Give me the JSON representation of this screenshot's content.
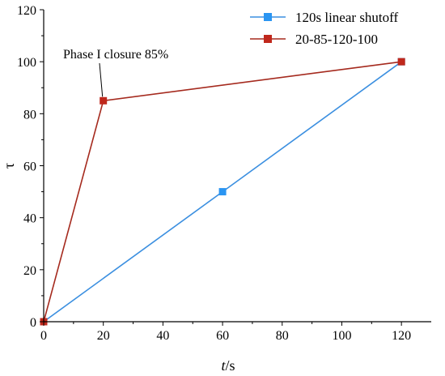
{
  "chart_data": {
    "type": "line",
    "xlabel": {
      "var": "t",
      "unit": "/s"
    },
    "ylabel": "τ",
    "xlim": [
      0,
      130
    ],
    "ylim": [
      0,
      120
    ],
    "xticks": [
      0,
      20,
      40,
      60,
      80,
      100,
      120
    ],
    "yticks": [
      0,
      20,
      40,
      60,
      80,
      100,
      120
    ],
    "grid": false,
    "legend_position": "top-right",
    "series": [
      {
        "name": "120s linear shutoff",
        "color": "#3b8fe0",
        "marker_color": "#2a95f2",
        "x": [
          0,
          60,
          120
        ],
        "y": [
          0,
          50,
          100
        ]
      },
      {
        "name": "20-85-120-100",
        "color": "#a52a1e",
        "marker_color": "#c0281c",
        "x": [
          0,
          20,
          120
        ],
        "y": [
          0,
          85,
          100
        ]
      }
    ],
    "annotations": [
      {
        "text": "Phase I closure 85%",
        "x": 20,
        "y": 85
      }
    ]
  }
}
